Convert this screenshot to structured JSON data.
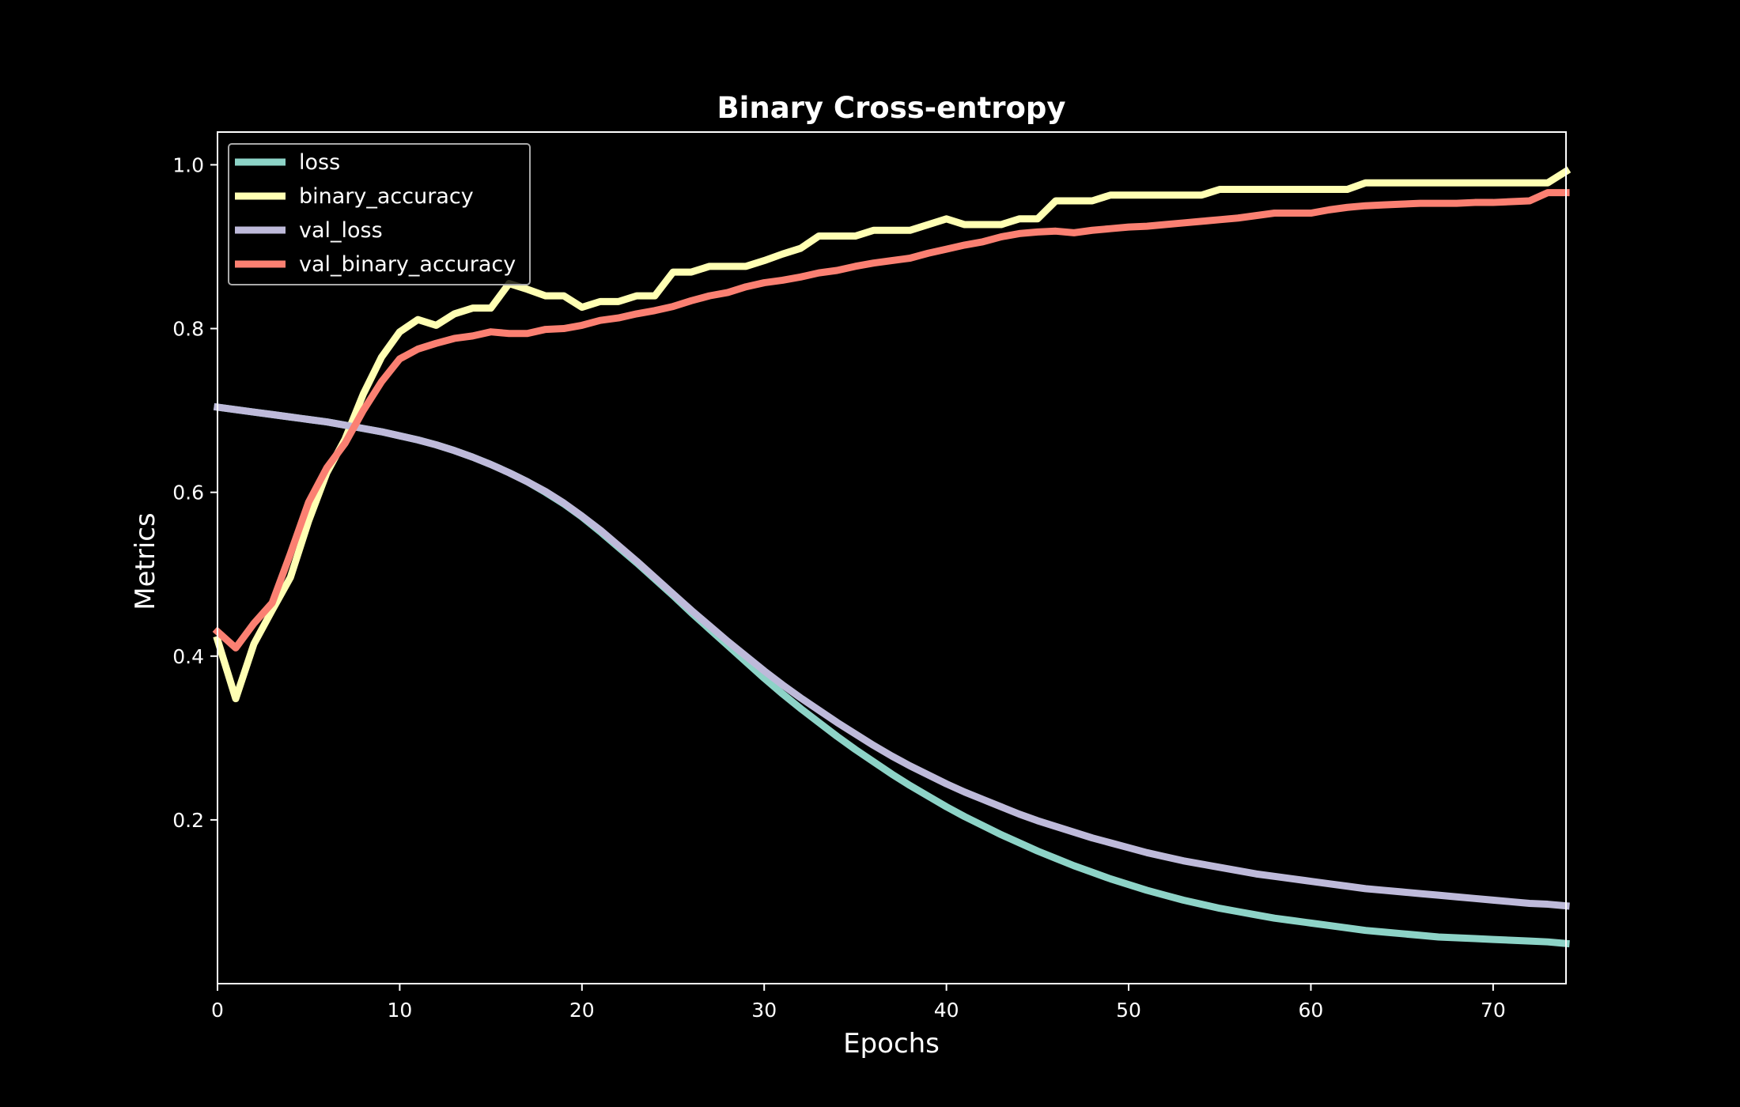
{
  "chart_data": {
    "type": "line",
    "title": "Binary Cross-entropy",
    "xlabel": "Epochs",
    "ylabel": "Metrics",
    "xlim": [
      0,
      74
    ],
    "ylim": [
      0.0,
      1.04
    ],
    "xticks": [
      0,
      10,
      20,
      30,
      40,
      50,
      60,
      70
    ],
    "yticks": [
      0.2,
      0.4,
      0.6,
      0.8,
      1.0
    ],
    "ytick_labels": [
      "0.2",
      "0.4",
      "0.6",
      "0.8",
      "1.0"
    ],
    "legend_position": "top-left",
    "background": "#000000",
    "foreground": "#ffffff",
    "series": [
      {
        "name": "loss",
        "color": "#8dd3c7",
        "values": [
          0.704,
          0.701,
          0.698,
          0.695,
          0.692,
          0.689,
          0.686,
          0.682,
          0.678,
          0.674,
          0.669,
          0.664,
          0.658,
          0.651,
          0.643,
          0.634,
          0.624,
          0.613,
          0.6,
          0.586,
          0.57,
          0.552,
          0.533,
          0.514,
          0.494,
          0.474,
          0.453,
          0.433,
          0.413,
          0.393,
          0.373,
          0.354,
          0.336,
          0.319,
          0.302,
          0.286,
          0.271,
          0.256,
          0.242,
          0.229,
          0.216,
          0.204,
          0.193,
          0.182,
          0.172,
          0.162,
          0.153,
          0.144,
          0.136,
          0.128,
          0.121,
          0.114,
          0.108,
          0.102,
          0.097,
          0.092,
          0.088,
          0.084,
          0.08,
          0.077,
          0.074,
          0.071,
          0.068,
          0.065,
          0.063,
          0.061,
          0.059,
          0.057,
          0.056,
          0.055,
          0.054,
          0.053,
          0.052,
          0.051,
          0.049
        ]
      },
      {
        "name": "binary_accuracy",
        "color": "#ffffb3",
        "values": [
          0.42,
          0.348,
          0.415,
          0.456,
          0.496,
          0.565,
          0.624,
          0.665,
          0.72,
          0.765,
          0.796,
          0.811,
          0.804,
          0.818,
          0.825,
          0.825,
          0.855,
          0.848,
          0.84,
          0.84,
          0.826,
          0.833,
          0.833,
          0.84,
          0.84,
          0.869,
          0.869,
          0.876,
          0.876,
          0.876,
          0.883,
          0.891,
          0.898,
          0.913,
          0.913,
          0.913,
          0.92,
          0.92,
          0.92,
          0.927,
          0.934,
          0.927,
          0.927,
          0.927,
          0.934,
          0.934,
          0.956,
          0.956,
          0.956,
          0.963,
          0.963,
          0.963,
          0.963,
          0.963,
          0.963,
          0.97,
          0.97,
          0.97,
          0.97,
          0.97,
          0.97,
          0.97,
          0.97,
          0.978,
          0.978,
          0.978,
          0.978,
          0.978,
          0.978,
          0.978,
          0.978,
          0.978,
          0.978,
          0.978,
          0.992
        ]
      },
      {
        "name": "val_loss",
        "color": "#bebada",
        "values": [
          0.704,
          0.701,
          0.698,
          0.695,
          0.692,
          0.689,
          0.686,
          0.682,
          0.678,
          0.674,
          0.669,
          0.664,
          0.658,
          0.651,
          0.643,
          0.634,
          0.624,
          0.613,
          0.601,
          0.587,
          0.571,
          0.554,
          0.535,
          0.516,
          0.496,
          0.476,
          0.456,
          0.437,
          0.418,
          0.4,
          0.382,
          0.365,
          0.349,
          0.334,
          0.319,
          0.305,
          0.291,
          0.278,
          0.266,
          0.255,
          0.244,
          0.234,
          0.225,
          0.216,
          0.207,
          0.199,
          0.192,
          0.185,
          0.178,
          0.172,
          0.166,
          0.16,
          0.155,
          0.15,
          0.146,
          0.142,
          0.138,
          0.134,
          0.131,
          0.128,
          0.125,
          0.122,
          0.119,
          0.116,
          0.114,
          0.112,
          0.11,
          0.108,
          0.106,
          0.104,
          0.102,
          0.1,
          0.098,
          0.097,
          0.095
        ]
      },
      {
        "name": "val_binary_accuracy",
        "color": "#fb8072",
        "values": [
          0.43,
          0.41,
          0.44,
          0.465,
          0.525,
          0.588,
          0.63,
          0.66,
          0.7,
          0.735,
          0.763,
          0.775,
          0.782,
          0.788,
          0.791,
          0.796,
          0.794,
          0.794,
          0.799,
          0.8,
          0.804,
          0.81,
          0.813,
          0.818,
          0.822,
          0.827,
          0.834,
          0.84,
          0.844,
          0.851,
          0.856,
          0.859,
          0.863,
          0.868,
          0.871,
          0.876,
          0.88,
          0.883,
          0.886,
          0.892,
          0.897,
          0.902,
          0.906,
          0.912,
          0.916,
          0.918,
          0.919,
          0.917,
          0.92,
          0.922,
          0.924,
          0.925,
          0.927,
          0.929,
          0.931,
          0.933,
          0.935,
          0.938,
          0.941,
          0.941,
          0.941,
          0.945,
          0.948,
          0.95,
          0.951,
          0.952,
          0.953,
          0.953,
          0.953,
          0.954,
          0.954,
          0.955,
          0.956,
          0.966,
          0.966
        ]
      }
    ]
  }
}
